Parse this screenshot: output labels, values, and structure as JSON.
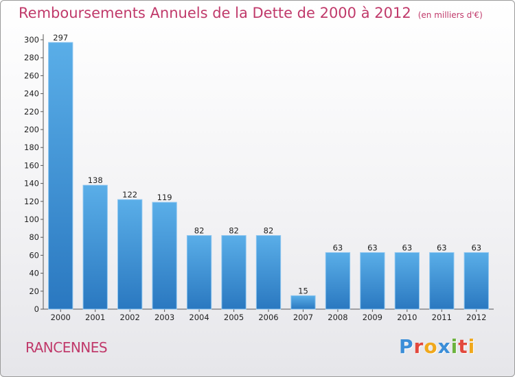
{
  "chart_data": {
    "type": "bar",
    "title": "Remboursements Annuels de la Dette de 2000 à 2012",
    "subtitle": "(en milliers d'€)",
    "categories": [
      "2000",
      "2001",
      "2002",
      "2003",
      "2004",
      "2005",
      "2006",
      "2007",
      "2008",
      "2009",
      "2010",
      "2011",
      "2012"
    ],
    "values": [
      297,
      138,
      122,
      119,
      82,
      82,
      82,
      15,
      63,
      63,
      63,
      63,
      63
    ],
    "data_labels": [
      "297",
      "138",
      "122",
      "119",
      "82",
      "82",
      "82",
      "15",
      "63",
      "63",
      "63",
      "63",
      "63"
    ],
    "yticks": [
      "0",
      "20",
      "40",
      "60",
      "80",
      "100",
      "120",
      "140",
      "160",
      "180",
      "200",
      "220",
      "240",
      "260",
      "280",
      "300"
    ],
    "ylim": [
      0,
      300
    ],
    "grid": false,
    "bar_color": "#3a8fd6"
  },
  "location": "RANCENNES",
  "logo": {
    "text": "Proxiti",
    "letters": [
      {
        "ch": "P",
        "color": "#3b8ed8"
      },
      {
        "ch": "r",
        "color": "#e2483d"
      },
      {
        "ch": "o",
        "color": "#f0a81c"
      },
      {
        "ch": "x",
        "color": "#3b8ed8"
      },
      {
        "ch": "i",
        "color": "#6cb33e"
      },
      {
        "ch": "t",
        "color": "#e2483d"
      },
      {
        "ch": "i",
        "color": "#f0a81c"
      }
    ]
  }
}
